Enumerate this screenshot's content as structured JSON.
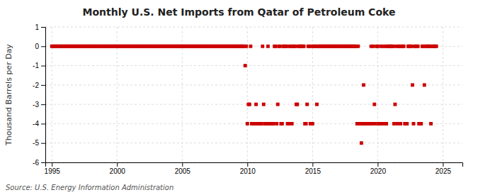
{
  "chart_data": {
    "type": "scatter",
    "title": "Monthly U.S. Net Imports from Qatar of Petroleum Coke",
    "y_label": "Thousand Barrels per Day",
    "source": "Source: U.S. Energy Information Administration",
    "color": "#cc0000",
    "marker": "square",
    "grid": true,
    "xlim": [
      1994.5,
      2026.5
    ],
    "ylim": [
      -6,
      1
    ],
    "xticks": [
      1995,
      2000,
      2005,
      2010,
      2015,
      2020,
      2025
    ],
    "yticks": [
      1,
      0,
      -1,
      -2,
      -3,
      -4,
      -5,
      -6
    ],
    "x": [
      1995.0,
      1995.083,
      1995.167,
      1995.25,
      1995.333,
      1995.417,
      1995.5,
      1995.583,
      1995.667,
      1995.75,
      1995.833,
      1995.917,
      1996.0,
      1996.083,
      1996.167,
      1996.25,
      1996.333,
      1996.417,
      1996.5,
      1996.583,
      1996.667,
      1996.75,
      1996.833,
      1996.917,
      1997.0,
      1997.083,
      1997.167,
      1997.25,
      1997.333,
      1997.417,
      1997.5,
      1997.583,
      1997.667,
      1997.75,
      1997.833,
      1997.917,
      1998.0,
      1998.083,
      1998.167,
      1998.25,
      1998.333,
      1998.417,
      1998.5,
      1998.583,
      1998.667,
      1998.75,
      1998.833,
      1998.917,
      1999.0,
      1999.083,
      1999.167,
      1999.25,
      1999.333,
      1999.417,
      1999.5,
      1999.583,
      1999.667,
      1999.75,
      1999.833,
      1999.917,
      2000.0,
      2000.083,
      2000.167,
      2000.25,
      2000.333,
      2000.417,
      2000.5,
      2000.583,
      2000.667,
      2000.75,
      2000.833,
      2000.917,
      2001.0,
      2001.083,
      2001.167,
      2001.25,
      2001.333,
      2001.417,
      2001.5,
      2001.583,
      2001.667,
      2001.75,
      2001.833,
      2001.917,
      2002.0,
      2002.083,
      2002.167,
      2002.25,
      2002.333,
      2002.417,
      2002.5,
      2002.583,
      2002.667,
      2002.75,
      2002.833,
      2002.917,
      2003.0,
      2003.083,
      2003.167,
      2003.25,
      2003.333,
      2003.417,
      2003.5,
      2003.583,
      2003.667,
      2003.75,
      2003.833,
      2003.917,
      2004.0,
      2004.083,
      2004.167,
      2004.25,
      2004.333,
      2004.417,
      2004.5,
      2004.583,
      2004.667,
      2004.75,
      2004.833,
      2004.917,
      2005.0,
      2005.083,
      2005.167,
      2005.25,
      2005.333,
      2005.417,
      2005.5,
      2005.583,
      2005.667,
      2005.75,
      2005.833,
      2005.917,
      2006.0,
      2006.083,
      2006.167,
      2006.25,
      2006.333,
      2006.417,
      2006.5,
      2006.583,
      2006.667,
      2006.75,
      2006.833,
      2006.917,
      2007.0,
      2007.083,
      2007.167,
      2007.25,
      2007.333,
      2007.417,
      2007.5,
      2007.583,
      2007.667,
      2007.75,
      2007.833,
      2007.917,
      2008.0,
      2008.083,
      2008.167,
      2008.25,
      2008.333,
      2008.417,
      2008.5,
      2008.583,
      2008.667,
      2008.75,
      2008.833,
      2008.917,
      2009.0,
      2009.083,
      2009.167,
      2009.25,
      2009.333,
      2009.417,
      2009.5,
      2009.583,
      2009.667,
      2009.75,
      2009.833,
      2009.917,
      2010.0,
      2010.083,
      2010.167,
      2010.25,
      2010.333,
      2010.417,
      2010.5,
      2010.583,
      2010.667,
      2010.75,
      2010.833,
      2010.917,
      2011.0,
      2011.083,
      2011.167,
      2011.25,
      2011.333,
      2011.417,
      2011.5,
      2011.583,
      2011.667,
      2011.75,
      2011.833,
      2011.917,
      2012.0,
      2012.083,
      2012.167,
      2012.25,
      2012.333,
      2012.417,
      2012.5,
      2012.583,
      2012.667,
      2012.75,
      2012.833,
      2012.917,
      2013.0,
      2013.083,
      2013.167,
      2013.25,
      2013.333,
      2013.417,
      2013.5,
      2013.583,
      2013.667,
      2013.75,
      2013.833,
      2013.917,
      2014.0,
      2014.083,
      2014.167,
      2014.25,
      2014.333,
      2014.417,
      2014.5,
      2014.583,
      2014.667,
      2014.75,
      2014.833,
      2014.917,
      2015.0,
      2015.083,
      2015.167,
      2015.25,
      2015.333,
      2015.417,
      2015.5,
      2015.583,
      2015.667,
      2015.75,
      2015.833,
      2015.917,
      2016.0,
      2016.083,
      2016.167,
      2016.25,
      2016.333,
      2016.417,
      2016.5,
      2016.583,
      2016.667,
      2016.75,
      2016.833,
      2016.917,
      2017.0,
      2017.083,
      2017.167,
      2017.25,
      2017.333,
      2017.417,
      2017.5,
      2017.583,
      2017.667,
      2017.75,
      2017.833,
      2017.917,
      2018.0,
      2018.083,
      2018.167,
      2018.25,
      2018.333,
      2018.417,
      2018.5,
      2018.583,
      2018.667,
      2018.75,
      2018.833,
      2018.917,
      2019.0,
      2019.083,
      2019.167,
      2019.25,
      2019.333,
      2019.417,
      2019.5,
      2019.583,
      2019.667,
      2019.75,
      2019.833,
      2019.917,
      2020.0,
      2020.083,
      2020.167,
      2020.25,
      2020.333,
      2020.417,
      2020.5,
      2020.583,
      2020.667,
      2020.75,
      2020.833,
      2020.917,
      2021.0,
      2021.083,
      2021.167,
      2021.25,
      2021.333,
      2021.417,
      2021.5,
      2021.583,
      2021.667,
      2021.75,
      2021.833,
      2021.917,
      2022.0,
      2022.083,
      2022.167,
      2022.25,
      2022.333,
      2022.417,
      2022.5,
      2022.583,
      2022.667,
      2022.75,
      2022.833,
      2022.917,
      2023.0,
      2023.083,
      2023.167,
      2023.25,
      2023.333,
      2023.417,
      2023.5,
      2023.583,
      2023.667,
      2023.75,
      2023.833,
      2023.917,
      2024.0,
      2024.083,
      2024.167,
      2024.25,
      2024.333,
      2024.417,
      2024.5
    ],
    "values": [
      0,
      0,
      0,
      0,
      0,
      0,
      0,
      0,
      0,
      0,
      0,
      0,
      0,
      0,
      0,
      0,
      0,
      0,
      0,
      0,
      0,
      0,
      0,
      0,
      0,
      0,
      0,
      0,
      0,
      0,
      0,
      0,
      0,
      0,
      0,
      0,
      0,
      0,
      0,
      0,
      0,
      0,
      0,
      0,
      0,
      0,
      0,
      0,
      0,
      0,
      0,
      0,
      0,
      0,
      0,
      0,
      0,
      0,
      0,
      0,
      0,
      0,
      0,
      0,
      0,
      0,
      0,
      0,
      0,
      0,
      0,
      0,
      0,
      0,
      0,
      0,
      0,
      0,
      0,
      0,
      0,
      0,
      0,
      0,
      0,
      0,
      0,
      0,
      0,
      0,
      0,
      0,
      0,
      0,
      0,
      0,
      0,
      0,
      0,
      0,
      0,
      0,
      0,
      0,
      0,
      0,
      0,
      0,
      0,
      0,
      0,
      0,
      0,
      0,
      0,
      0,
      0,
      0,
      0,
      0,
      0,
      0,
      0,
      0,
      0,
      0,
      0,
      0,
      0,
      0,
      0,
      0,
      0,
      0,
      0,
      0,
      0,
      0,
      0,
      0,
      0,
      0,
      0,
      0,
      0,
      0,
      0,
      0,
      0,
      0,
      0,
      0,
      0,
      0,
      0,
      0,
      0,
      0,
      0,
      0,
      0,
      0,
      0,
      0,
      0,
      0,
      0,
      0,
      0,
      0,
      0,
      0,
      0,
      0,
      0,
      0,
      0,
      0,
      -1,
      0,
      -4,
      -3,
      -3,
      0,
      -4,
      -4,
      -4,
      -4,
      -3,
      -4,
      -4,
      -4,
      -4,
      -4,
      0,
      -3,
      -4,
      -4,
      -4,
      0,
      -4,
      -4,
      -4,
      -4,
      -4,
      0,
      0,
      -4,
      -3,
      0,
      0,
      -4,
      -4,
      0,
      0,
      0,
      0,
      -4,
      -4,
      0,
      0,
      -4,
      0,
      0,
      0,
      -3,
      -3,
      0,
      0,
      0,
      0,
      0,
      0,
      -4,
      -4,
      -3,
      0,
      0,
      -4,
      0,
      -4,
      0,
      0,
      0,
      -3,
      0,
      0,
      0,
      0,
      0,
      0,
      0,
      0,
      0,
      0,
      0,
      0,
      0,
      0,
      0,
      0,
      0,
      0,
      0,
      0,
      0,
      0,
      0,
      0,
      0,
      0,
      0,
      0,
      0,
      0,
      0,
      0,
      0,
      0,
      0,
      0,
      -4,
      0,
      -4,
      -4,
      -5,
      -4,
      -2,
      -4,
      -4,
      -4,
      -4,
      -4,
      -4,
      0,
      -4,
      0,
      -3,
      -4,
      0,
      0,
      -4,
      -4,
      0,
      -4,
      0,
      -4,
      0,
      -4,
      0,
      0,
      0,
      0,
      0,
      0,
      -4,
      -3,
      0,
      -4,
      0,
      0,
      -4,
      0,
      0,
      0,
      -4,
      -4,
      -4,
      0,
      0,
      0,
      0,
      -2,
      -4,
      0,
      0,
      0,
      0,
      -4,
      -4,
      -4,
      0,
      0,
      -2,
      0,
      0,
      0,
      0,
      0,
      -4,
      0,
      0,
      0,
      0,
      0
    ]
  }
}
